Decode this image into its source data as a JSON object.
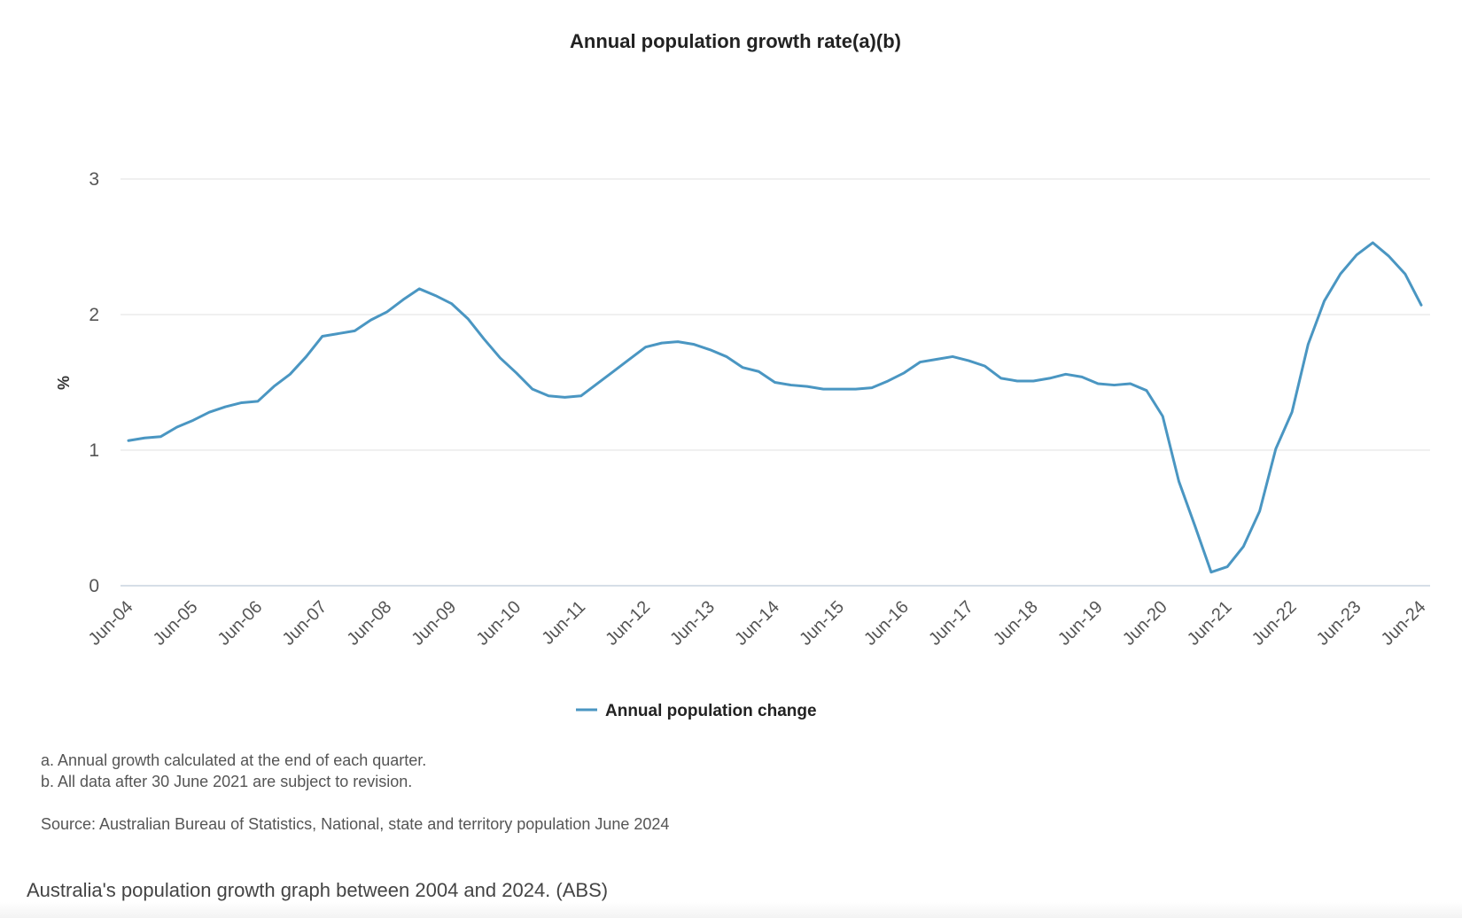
{
  "chart_data": {
    "type": "line",
    "title": "Annual population growth rate(a)(b)",
    "ylabel": "%",
    "xlabel": "",
    "ylim": [
      0,
      3
    ],
    "yticks": [
      "0",
      "1",
      "2",
      "3"
    ],
    "xticks": [
      "Jun-04",
      "Jun-05",
      "Jun-06",
      "Jun-07",
      "Jun-08",
      "Jun-09",
      "Jun-10",
      "Jun-11",
      "Jun-12",
      "Jun-13",
      "Jun-14",
      "Jun-15",
      "Jun-16",
      "Jun-17",
      "Jun-18",
      "Jun-19",
      "Jun-20",
      "Jun-21",
      "Jun-22",
      "Jun-23",
      "Jun-24"
    ],
    "grid": true,
    "legend_position": "bottom-center",
    "series": [
      {
        "name": "Annual population change",
        "color": "#4a96c2",
        "x": [
          "Jun-04",
          "Sep-04",
          "Dec-04",
          "Mar-05",
          "Jun-05",
          "Sep-05",
          "Dec-05",
          "Mar-06",
          "Jun-06",
          "Sep-06",
          "Dec-06",
          "Mar-07",
          "Jun-07",
          "Sep-07",
          "Dec-07",
          "Mar-08",
          "Jun-08",
          "Sep-08",
          "Dec-08",
          "Mar-09",
          "Jun-09",
          "Sep-09",
          "Dec-09",
          "Mar-10",
          "Jun-10",
          "Sep-10",
          "Dec-10",
          "Mar-11",
          "Jun-11",
          "Sep-11",
          "Dec-11",
          "Mar-12",
          "Jun-12",
          "Sep-12",
          "Dec-12",
          "Mar-13",
          "Jun-13",
          "Sep-13",
          "Dec-13",
          "Mar-14",
          "Jun-14",
          "Sep-14",
          "Dec-14",
          "Mar-15",
          "Jun-15",
          "Sep-15",
          "Dec-15",
          "Mar-16",
          "Jun-16",
          "Sep-16",
          "Dec-16",
          "Mar-17",
          "Jun-17",
          "Sep-17",
          "Dec-17",
          "Mar-18",
          "Jun-18",
          "Sep-18",
          "Dec-18",
          "Mar-19",
          "Jun-19",
          "Sep-19",
          "Dec-19",
          "Mar-20",
          "Jun-20",
          "Sep-20",
          "Dec-20",
          "Mar-21",
          "Jun-21",
          "Sep-21",
          "Dec-21",
          "Mar-22",
          "Jun-22",
          "Sep-22",
          "Dec-22",
          "Mar-23",
          "Jun-23",
          "Sep-23",
          "Dec-23",
          "Mar-24",
          "Jun-24"
        ],
        "values": [
          1.07,
          1.09,
          1.1,
          1.17,
          1.22,
          1.28,
          1.32,
          1.35,
          1.36,
          1.47,
          1.56,
          1.69,
          1.84,
          1.86,
          1.88,
          1.96,
          2.02,
          2.11,
          2.19,
          2.14,
          2.08,
          1.97,
          1.82,
          1.68,
          1.57,
          1.45,
          1.4,
          1.39,
          1.4,
          1.49,
          1.58,
          1.67,
          1.76,
          1.79,
          1.8,
          1.78,
          1.74,
          1.69,
          1.61,
          1.58,
          1.5,
          1.48,
          1.47,
          1.45,
          1.45,
          1.45,
          1.46,
          1.51,
          1.57,
          1.65,
          1.67,
          1.69,
          1.66,
          1.62,
          1.53,
          1.51,
          1.51,
          1.53,
          1.56,
          1.54,
          1.49,
          1.48,
          1.49,
          1.44,
          1.25,
          0.77,
          0.44,
          0.1,
          0.14,
          0.29,
          0.55,
          1.01,
          1.28,
          1.78,
          2.1,
          2.3,
          2.44,
          2.53,
          2.43,
          2.3,
          2.07
        ]
      }
    ]
  },
  "footnotes": {
    "a": "a. Annual growth calculated at the end of each quarter.",
    "b": "b. All data after 30 June 2021 are subject to revision.",
    "source": "Source: Australian Bureau of Statistics, National, state and territory population June 2024"
  },
  "caption": "Australia's population growth graph between 2004 and 2024. (ABS)"
}
